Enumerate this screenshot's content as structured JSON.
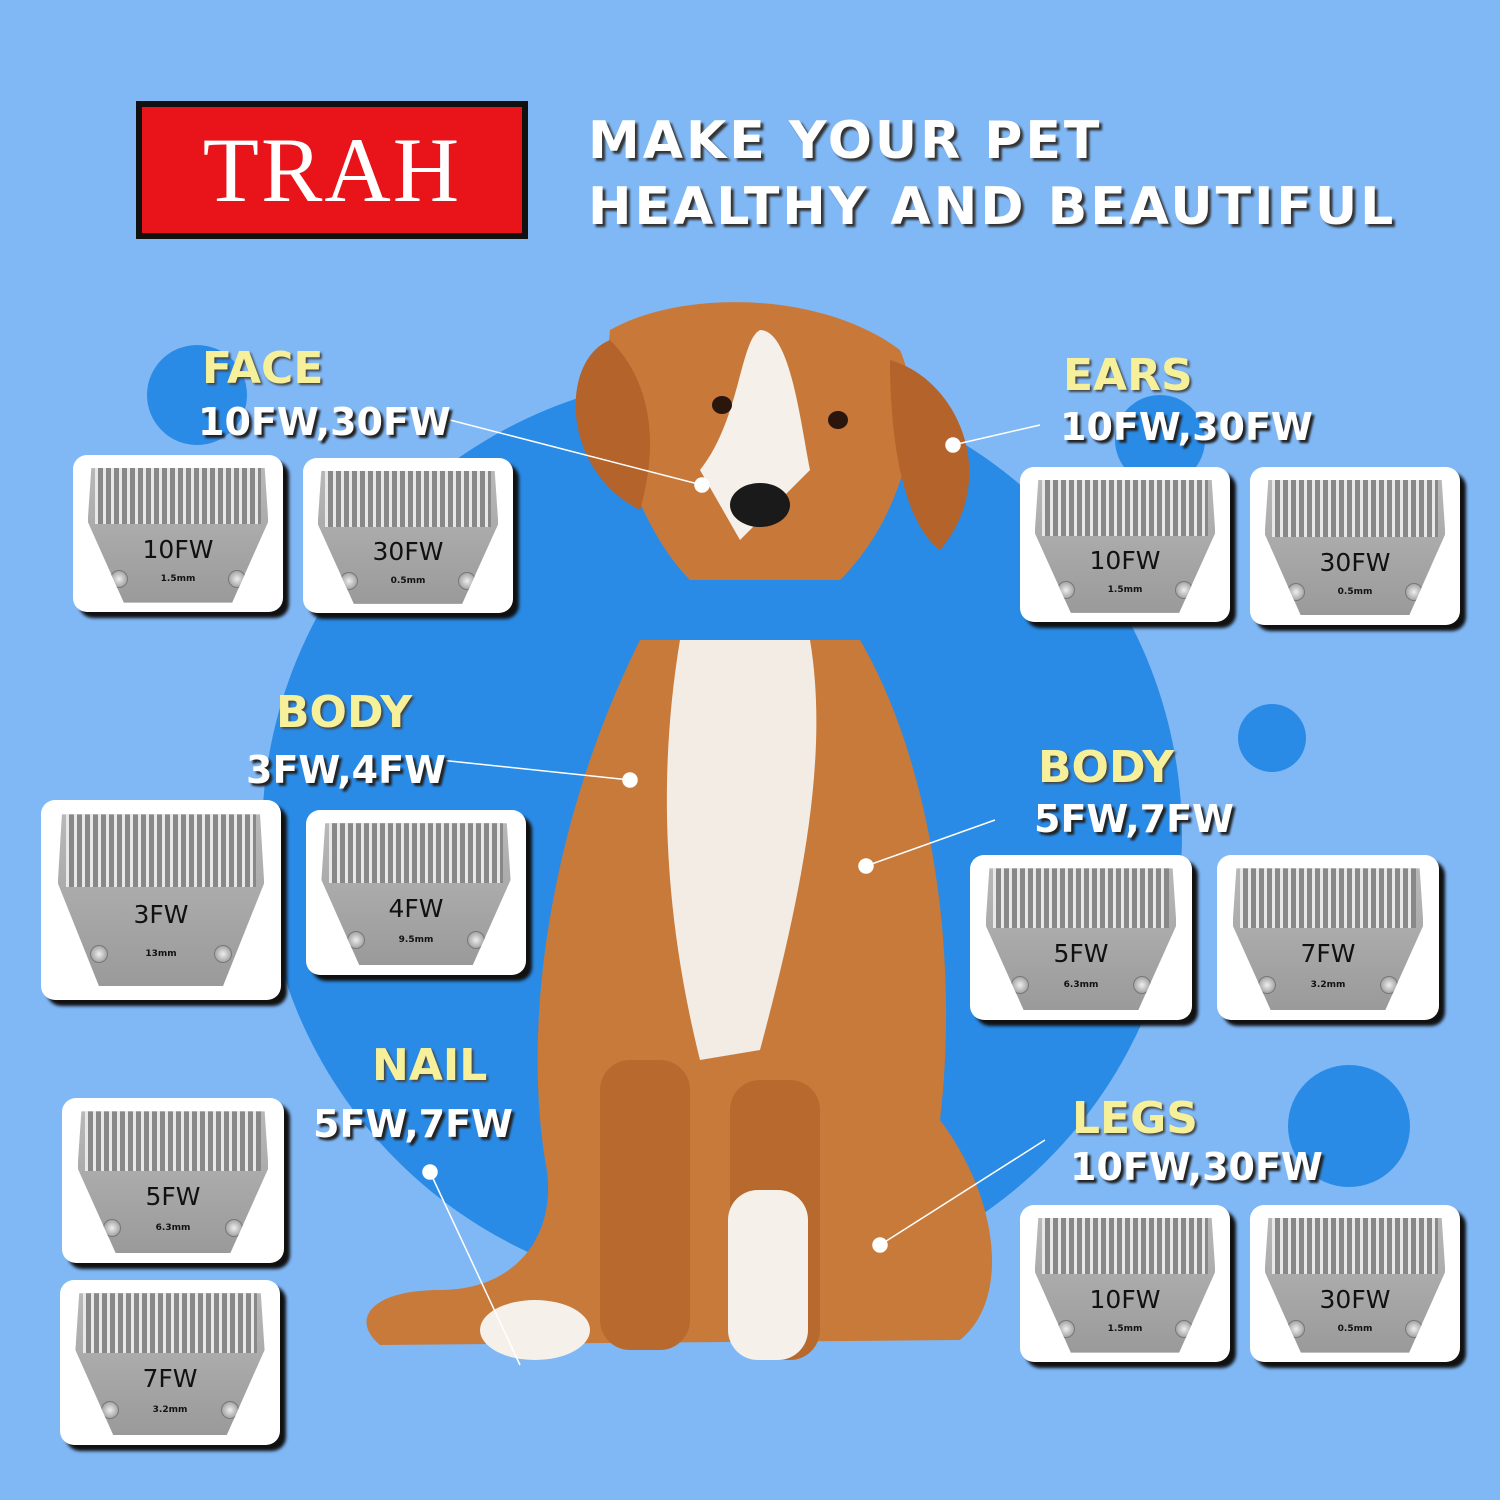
{
  "brand": "TRAH",
  "headline": [
    "MAKE YOUR PET",
    "HEALTHY AND BEAUTIFUL"
  ],
  "colors": {
    "background": "#80b8f6",
    "circle": "#2a8be6",
    "label": "#f6f09a",
    "logo": "#e8141a"
  },
  "groups": [
    {
      "id": "face",
      "label": "FACE",
      "codes": "10FW,30FW",
      "blades": [
        {
          "name": "10FW",
          "mm": "1.5mm"
        },
        {
          "name": "30FW",
          "mm": "0.5mm"
        }
      ]
    },
    {
      "id": "ears",
      "label": "EARS",
      "codes": "10FW,30FW",
      "blades": [
        {
          "name": "10FW",
          "mm": "1.5mm"
        },
        {
          "name": "30FW",
          "mm": "0.5mm"
        }
      ]
    },
    {
      "id": "body-left",
      "label": "BODY",
      "codes": "3FW,4FW",
      "blades": [
        {
          "name": "3FW",
          "mm": "13mm"
        },
        {
          "name": "4FW",
          "mm": "9.5mm"
        }
      ]
    },
    {
      "id": "body-right",
      "label": "BODY",
      "codes": "5FW,7FW",
      "blades": [
        {
          "name": "5FW",
          "mm": "6.3mm"
        },
        {
          "name": "7FW",
          "mm": "3.2mm"
        }
      ]
    },
    {
      "id": "nail",
      "label": "NAIL",
      "codes": "5FW,7FW",
      "blades": [
        {
          "name": "5FW",
          "mm": "6.3mm"
        },
        {
          "name": "7FW",
          "mm": "3.2mm"
        }
      ]
    },
    {
      "id": "legs",
      "label": "LEGS",
      "codes": "10FW,30FW",
      "blades": [
        {
          "name": "10FW",
          "mm": "1.5mm"
        },
        {
          "name": "30FW",
          "mm": "0.5mm"
        }
      ]
    }
  ]
}
